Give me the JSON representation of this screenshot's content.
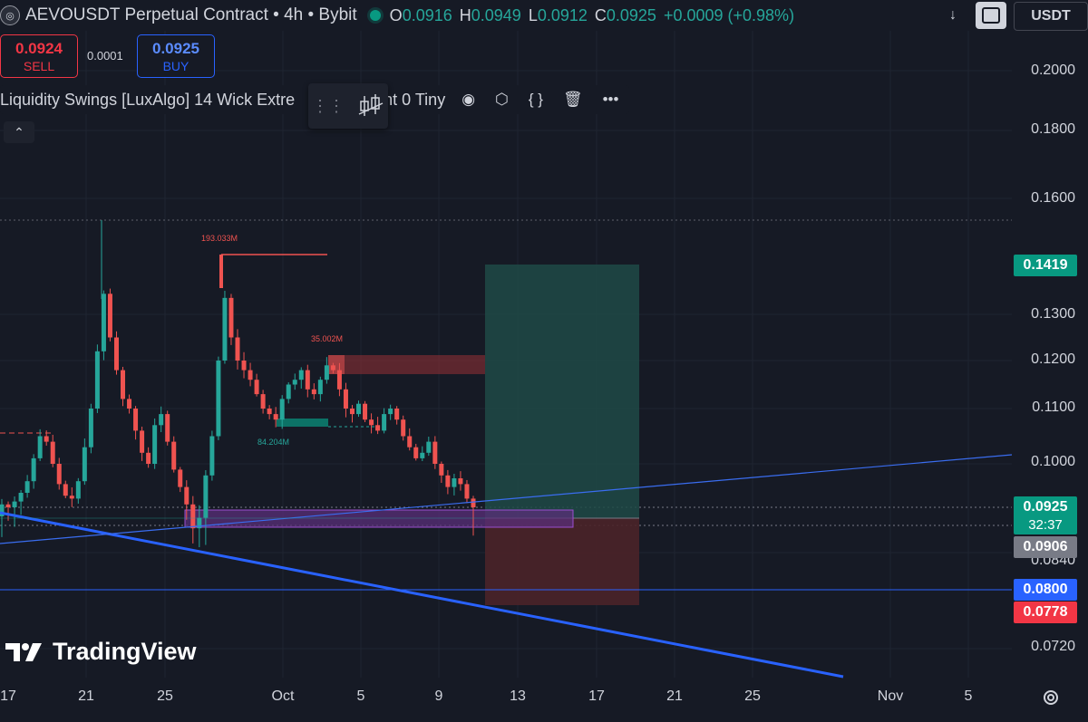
{
  "header": {
    "symbol_title": "AEVOUSDT Perpetual Contract • 4h • Bybit",
    "ohlc": [
      {
        "k": "O",
        "v": "0.0916"
      },
      {
        "k": "H",
        "v": "0.0949"
      },
      {
        "k": "L",
        "v": "0.0912"
      },
      {
        "k": "C",
        "v": "0.0925"
      },
      {
        "k": "",
        "v": "+0.0009 (+0.98%)"
      }
    ],
    "currency": "USDT"
  },
  "trade": {
    "sell_price": "0.0924",
    "sell_label": "SELL",
    "spread": "0.0001",
    "buy_price": "0.0925",
    "buy_label": "BUY"
  },
  "indicator": {
    "label_left": "Liquidity Swings [LuxAlgo] 14 Wick Extre",
    "label_right": "nt 0 Tiny"
  },
  "watermark": "TradingView",
  "colors": {
    "bg": "#161a25",
    "up": "#26a69a",
    "down": "#ef5350",
    "trendline": "#2962ff",
    "target_zone": "#1e4f4b",
    "stop_zone": "#4a2329",
    "liquidity_zone": "#5a2f7a"
  },
  "chart_data": {
    "type": "candlestick",
    "symbol": "AEVOUSDT",
    "interval": "4h",
    "exchange": "Bybit",
    "price_ticks": [
      "0.2000",
      "0.1800",
      "0.1600",
      "0.1300",
      "0.1200",
      "0.1100",
      "0.1000",
      "0.0840",
      "0.0720"
    ],
    "x_ticks": [
      "17",
      "21",
      "25",
      "Oct",
      "5",
      "9",
      "13",
      "17",
      "21",
      "25",
      "Nov",
      "5"
    ],
    "price_tags": [
      {
        "value": "0.1419",
        "kind": "target"
      },
      {
        "value": "0.0925",
        "sub": "32:37",
        "kind": "last"
      },
      {
        "value": "0.0906",
        "kind": "entry"
      },
      {
        "value": "0.0800",
        "kind": "line"
      },
      {
        "value": "0.0778",
        "kind": "stop"
      }
    ],
    "annotations": [
      "193.033M",
      "35.002M",
      "84.204M"
    ],
    "price_path": [
      0.093,
      0.0925,
      0.0935,
      0.095,
      0.097,
      0.101,
      0.105,
      0.104,
      0.1,
      0.0965,
      0.0945,
      0.094,
      0.097,
      0.103,
      0.11,
      0.122,
      0.135,
      0.125,
      0.118,
      0.112,
      0.11,
      0.106,
      0.102,
      0.1,
      0.107,
      0.109,
      0.104,
      0.099,
      0.096,
      0.093,
      0.0915,
      0.092,
      0.098,
      0.105,
      0.12,
      0.134,
      0.125,
      0.12,
      0.118,
      0.116,
      0.113,
      0.11,
      0.109,
      0.108,
      0.112,
      0.115,
      0.116,
      0.118,
      0.114,
      0.113,
      0.116,
      0.119,
      0.118,
      0.114,
      0.11,
      0.109,
      0.111,
      0.108,
      0.107,
      0.106,
      0.109,
      0.11,
      0.108,
      0.105,
      0.103,
      0.101,
      0.102,
      0.104,
      0.1,
      0.098,
      0.096,
      0.0975,
      0.0965,
      0.094,
      0.0925
    ]
  }
}
